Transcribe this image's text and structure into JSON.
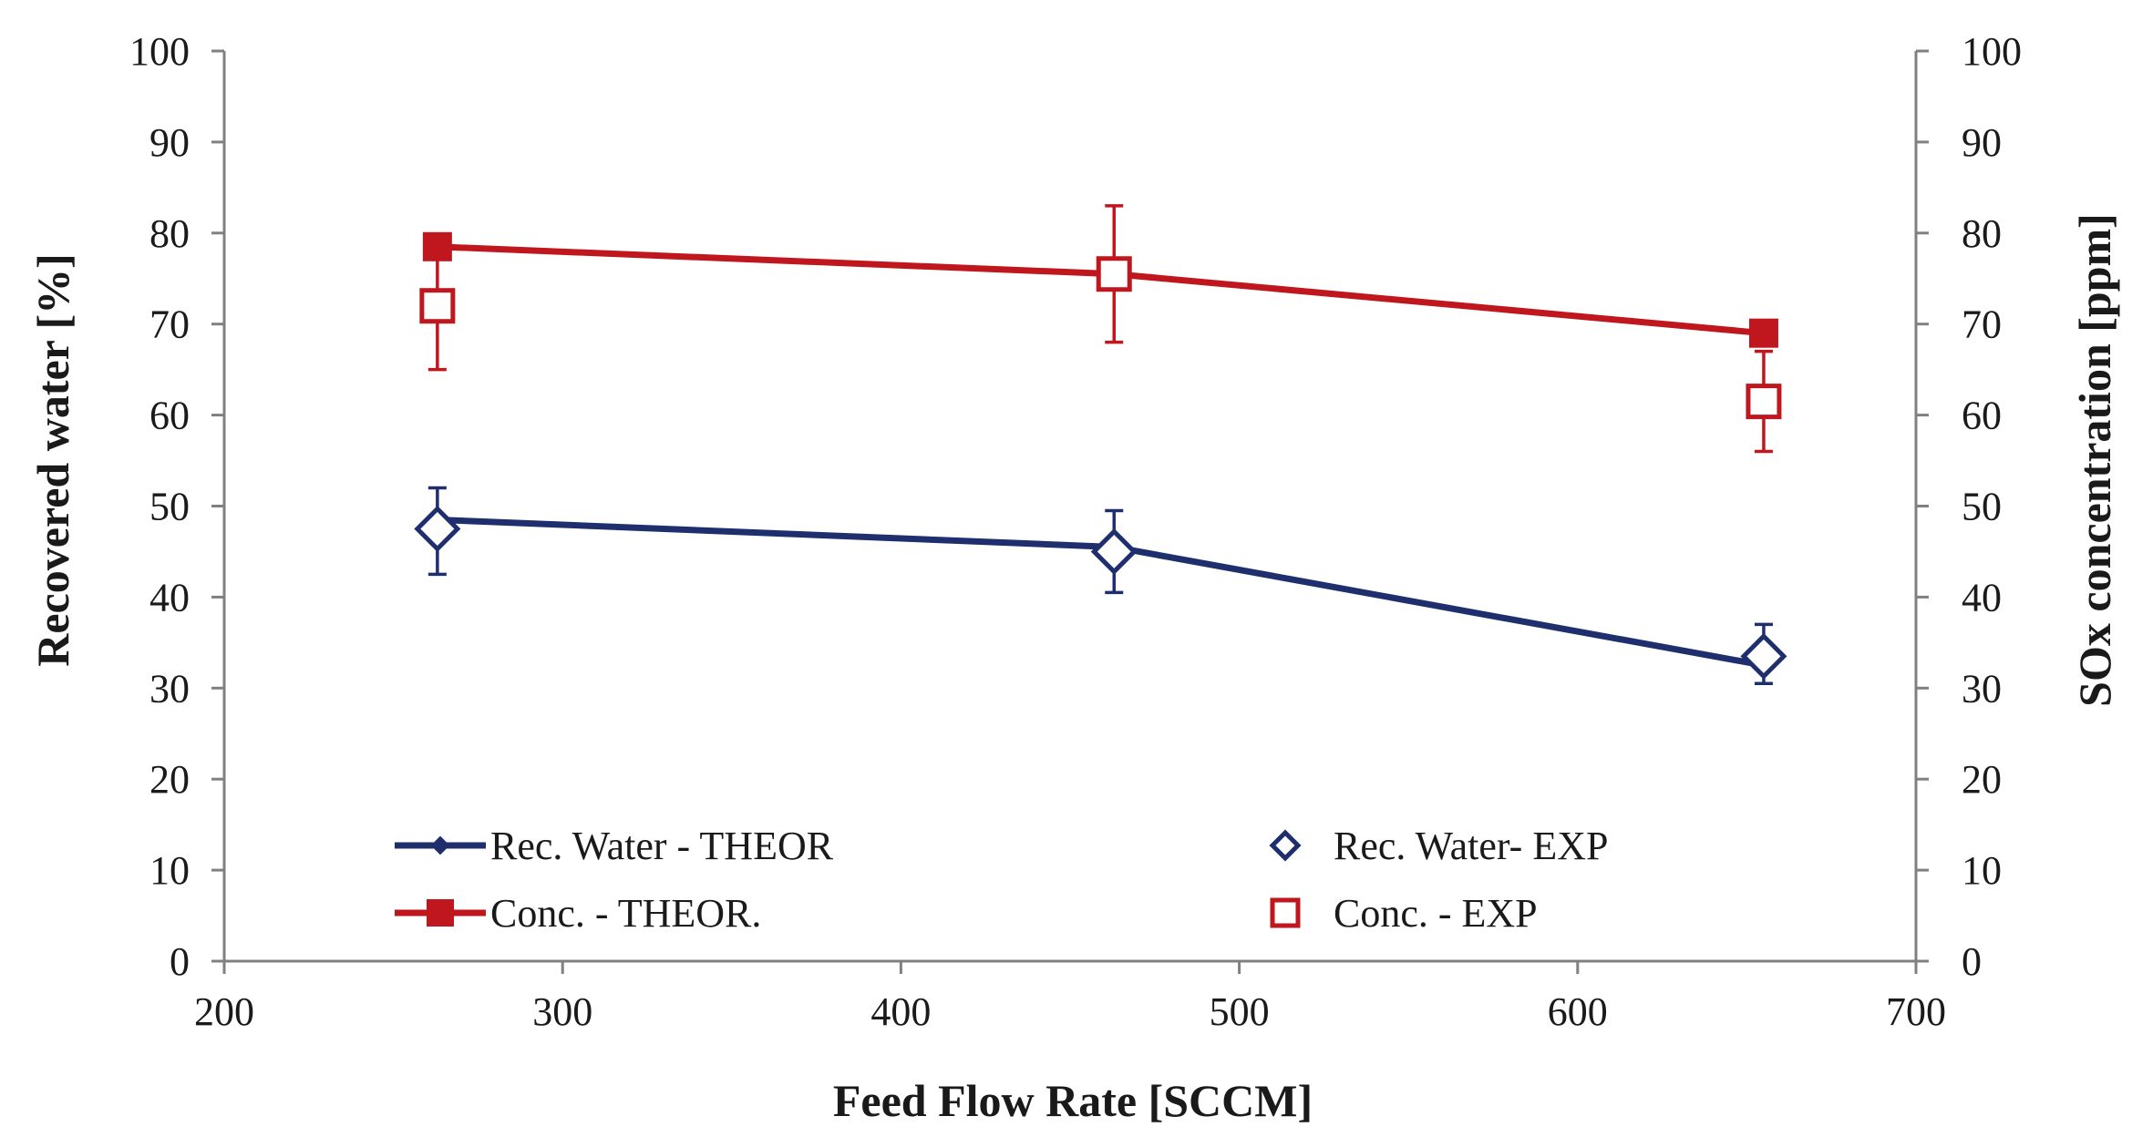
{
  "chart_data": {
    "type": "line",
    "title": "",
    "xlabel": "Feed Flow Rate [SCCM]",
    "ylabel": "Recovered water [%]",
    "y2label": "SOx concentration [ppm]",
    "xlim": [
      200,
      700
    ],
    "ylim": [
      0,
      100
    ],
    "y2lim": [
      0,
      100
    ],
    "x_ticks": [
      "200",
      "300",
      "400",
      "500",
      "600",
      "700"
    ],
    "y_ticks": [
      "0",
      "10",
      "20",
      "30",
      "40",
      "50",
      "60",
      "70",
      "80",
      "90",
      "100"
    ],
    "y2_ticks": [
      "0",
      "10",
      "20",
      "30",
      "40",
      "50",
      "60",
      "70",
      "80",
      "90",
      "100"
    ],
    "series": [
      {
        "name": "Rec. Water - THEOR",
        "axis": "left",
        "style": "line-diamond-filled",
        "color": "#1f2f6e",
        "x": [
          263,
          463,
          655
        ],
        "y": [
          48.5,
          45.5,
          32.5
        ]
      },
      {
        "name": "Conc. - THEOR.",
        "axis": "right",
        "style": "line-square-filled",
        "color": "#c0161e",
        "x": [
          263,
          463,
          655
        ],
        "y": [
          78.5,
          75.5,
          69.0
        ]
      },
      {
        "name": "Rec. Water- EXP",
        "axis": "left",
        "style": "marker-diamond-open",
        "color": "#1f2f6e",
        "x": [
          263,
          463,
          655
        ],
        "y": [
          47.5,
          45.0,
          33.5
        ],
        "err_low": [
          42.5,
          40.5,
          30.5
        ],
        "err_high": [
          52.0,
          49.5,
          37.0
        ]
      },
      {
        "name": "Conc. - EXP",
        "axis": "right",
        "style": "marker-square-open",
        "color": "#c0161e",
        "x": [
          263,
          463,
          655
        ],
        "y": [
          72.0,
          75.5,
          61.5
        ],
        "err_low": [
          65.0,
          68.0,
          56.0
        ],
        "err_high": [
          78.0,
          83.0,
          67.0
        ]
      }
    ],
    "legend": {
      "placement": "bottom-inside",
      "entries": [
        "Rec. Water - THEOR",
        "Conc. - THEOR.",
        "Rec. Water- EXP",
        "Conc. - EXP"
      ]
    },
    "colors": {
      "blue": "#1f2f6e",
      "red": "#c0161e",
      "axis": "#808080"
    }
  }
}
